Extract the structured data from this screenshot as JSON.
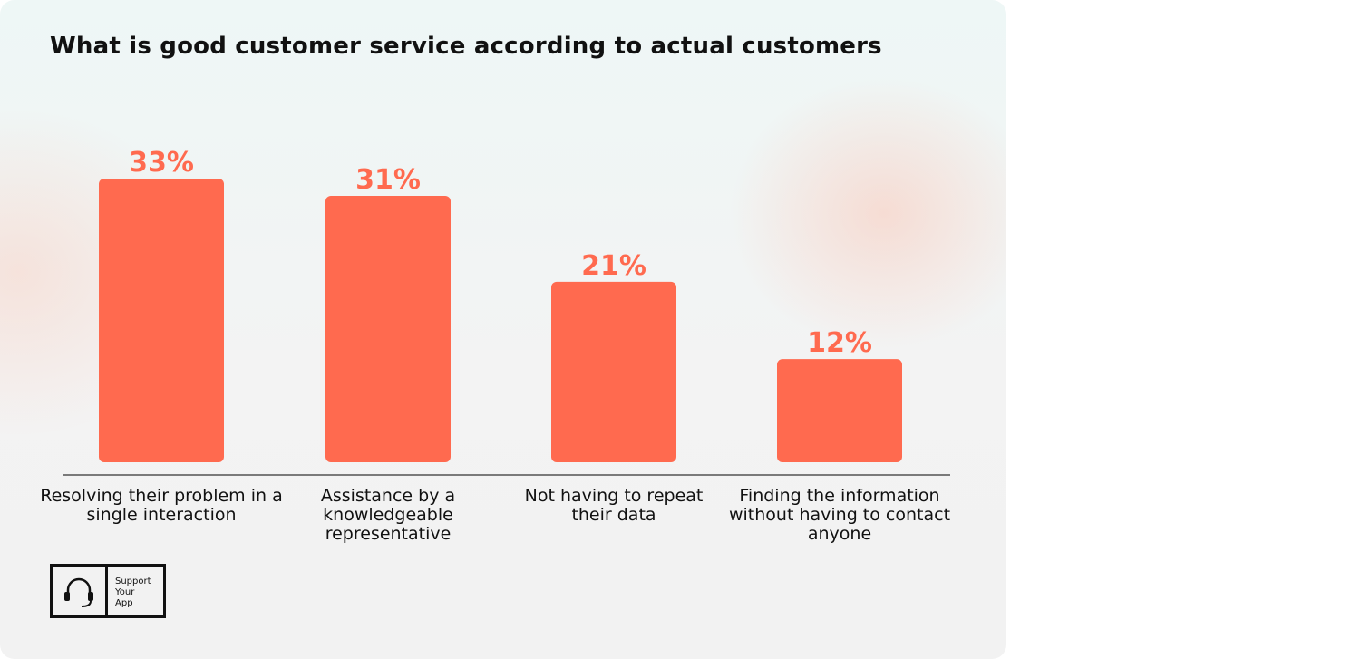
{
  "chart_data": {
    "type": "bar",
    "title": "What is good customer service according to actual customers",
    "categories": [
      "Resolving their problem in a single interaction",
      "Assistance by a knowledgeable representative",
      "Not having to repeat their data",
      "Finding the information without having to contact anyone"
    ],
    "values": [
      33,
      31,
      21,
      12
    ],
    "value_labels": [
      "33%",
      "31%",
      "21%",
      "12%"
    ],
    "color": "#ff6a4f"
  },
  "logo": {
    "text": [
      "Support",
      "Your",
      "App"
    ]
  }
}
